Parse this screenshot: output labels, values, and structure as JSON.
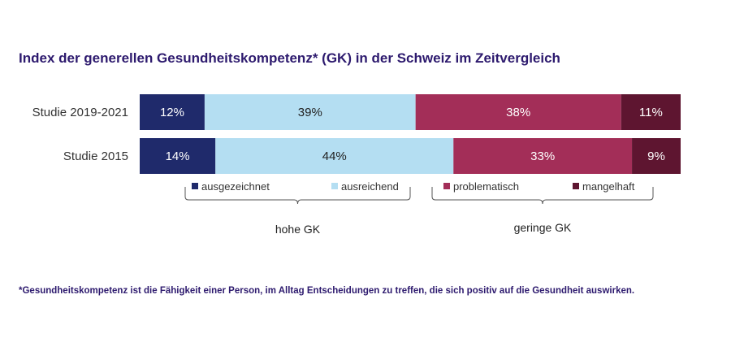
{
  "title": "Index der generellen Gesundheitskompetenz* (GK) in der Schweiz im Zeitvergleich",
  "footnote": "*Gesundheitskompetenz ist die Fähigkeit einer Person, im Alltag Entscheidungen zu treffen, die sich positiv auf die Gesundheit auswirken.",
  "chart_data": {
    "type": "bar",
    "orientation": "horizontal",
    "stacked": true,
    "title": "Index der generellen Gesundheitskompetenz* (GK) in der Schweiz im Zeitvergleich",
    "categories": [
      "Studie 2019-2021",
      "Studie 2015"
    ],
    "series": [
      {
        "name": "ausgezeichnet",
        "color": "#1f2a6b",
        "values": [
          12,
          14
        ]
      },
      {
        "name": "ausreichend",
        "color": "#b4def2",
        "values": [
          39,
          44
        ]
      },
      {
        "name": "problematisch",
        "color": "#a32e58",
        "values": [
          38,
          33
        ]
      },
      {
        "name": "mangelhaft",
        "color": "#5e1530",
        "values": [
          11,
          9
        ]
      }
    ],
    "unit": "%",
    "xlim": [
      0,
      100
    ],
    "legend_position": "bottom",
    "groups": [
      {
        "label": "hohe GK",
        "series": [
          "ausgezeichnet",
          "ausreichend"
        ]
      },
      {
        "label": "geringe GK",
        "series": [
          "problematisch",
          "mangelhaft"
        ]
      }
    ]
  }
}
